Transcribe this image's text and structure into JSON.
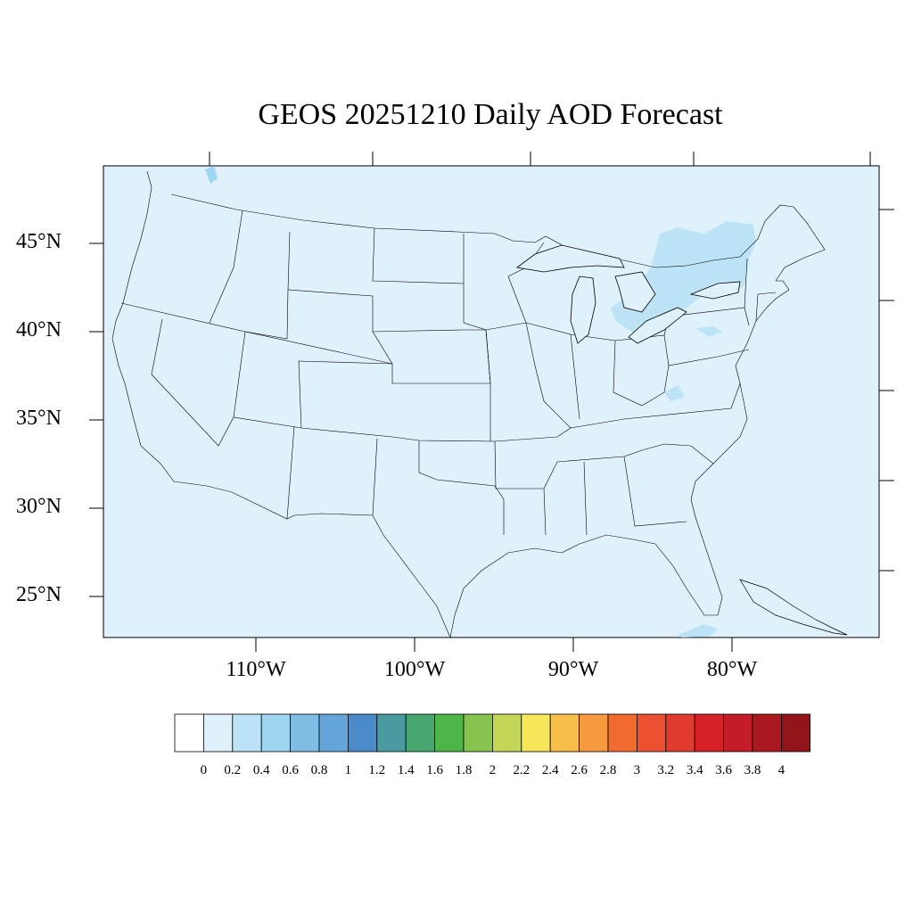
{
  "title": "GEOS 20251210 Daily AOD Forecast",
  "map": {
    "region": "Contiguous United States",
    "colors": {
      "ocean_fill": "#dff1fa",
      "land_fill": "#dff1fa",
      "highlight_aod_0_2_0_4": "#bde4f6",
      "highlight_aod_0_4_0_6": "#9ed6f2",
      "outline": "#000000"
    },
    "lat_labels": [
      "45°N",
      "40°N",
      "35°N",
      "30°N",
      "25°N"
    ],
    "lon_labels": [
      "110°W",
      "100°W",
      "90°W",
      "80°W"
    ]
  },
  "colorbar": {
    "labels": [
      "0",
      "0.2",
      "0.4",
      "0.6",
      "0.8",
      "1",
      "1.2",
      "1.4",
      "1.6",
      "1.8",
      "2",
      "2.2",
      "2.4",
      "2.6",
      "2.8",
      "3",
      "3.2",
      "3.4",
      "3.6",
      "3.8",
      "4"
    ],
    "colors": [
      "#ffffff",
      "#dff1fa",
      "#bde4f6",
      "#9ed6f2",
      "#7fbde4",
      "#64a6da",
      "#4a8ac9",
      "#4a9ba0",
      "#46a86e",
      "#4db648",
      "#86c34f",
      "#c3d658",
      "#f7e55a",
      "#f7be4a",
      "#f5983e",
      "#f16a2e",
      "#eb5130",
      "#e03b2c",
      "#d72128",
      "#c21d28",
      "#a9191f",
      "#921519"
    ]
  }
}
